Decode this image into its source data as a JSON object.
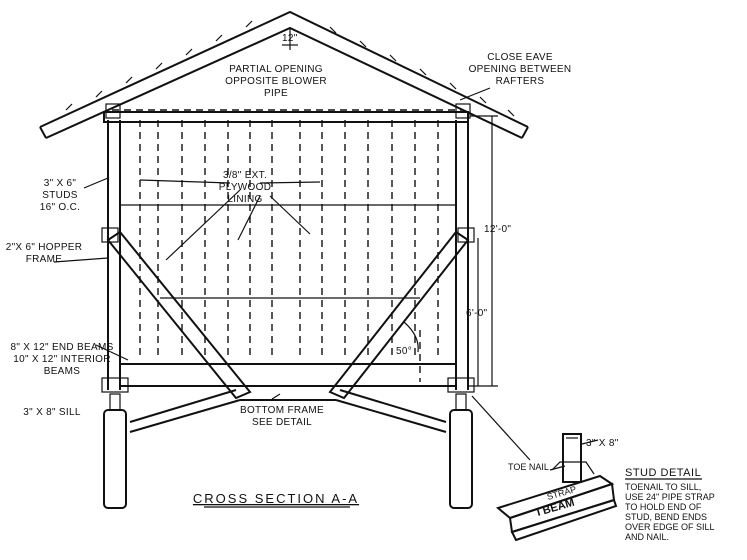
{
  "labels": {
    "ridge_dim": "12\"",
    "partial_opening": [
      "PARTIAL OPENING",
      "OPPOSITE BLOWER",
      "PIPE"
    ],
    "close_eave": [
      "CLOSE EAVE",
      "OPENING BETWEEN",
      "RAFTERS"
    ],
    "plywood": [
      "3/8\" EXT.",
      "PLYWOOD",
      "LINING"
    ],
    "studs": [
      "3\" X 6\"",
      "STUDS",
      "16\" O.C."
    ],
    "hopper_frame": [
      "2\"X 6\" HOPPER",
      "FRAME"
    ],
    "dim_12": "12'-0\"",
    "dim_6": "6'-0\"",
    "angle": "50°",
    "end_beams": "8\" X 12\" END BEAMS",
    "interior_beams": [
      "10\" X 12\" INTERIOR",
      "BEAMS"
    ],
    "sill": "3\" X 8\" SILL",
    "bottom_frame": [
      "BOTTOM FRAME",
      "SEE DETAIL"
    ],
    "section_title": "CROSS SECTION A-A",
    "stud_dim": "3\" X 8\"",
    "toe_nail": "TOE NAIL",
    "strap": "STRAP",
    "i_beam": "I BEAM",
    "stud_detail_title": "STUD DETAIL",
    "stud_detail_notes": [
      "TOENAIL TO SILL,",
      "USE 24\" PIPE STRAP",
      "TO HOLD END OF",
      "STUD, BEND ENDS",
      "OVER EDGE OF SILL",
      "AND NAIL."
    ]
  }
}
